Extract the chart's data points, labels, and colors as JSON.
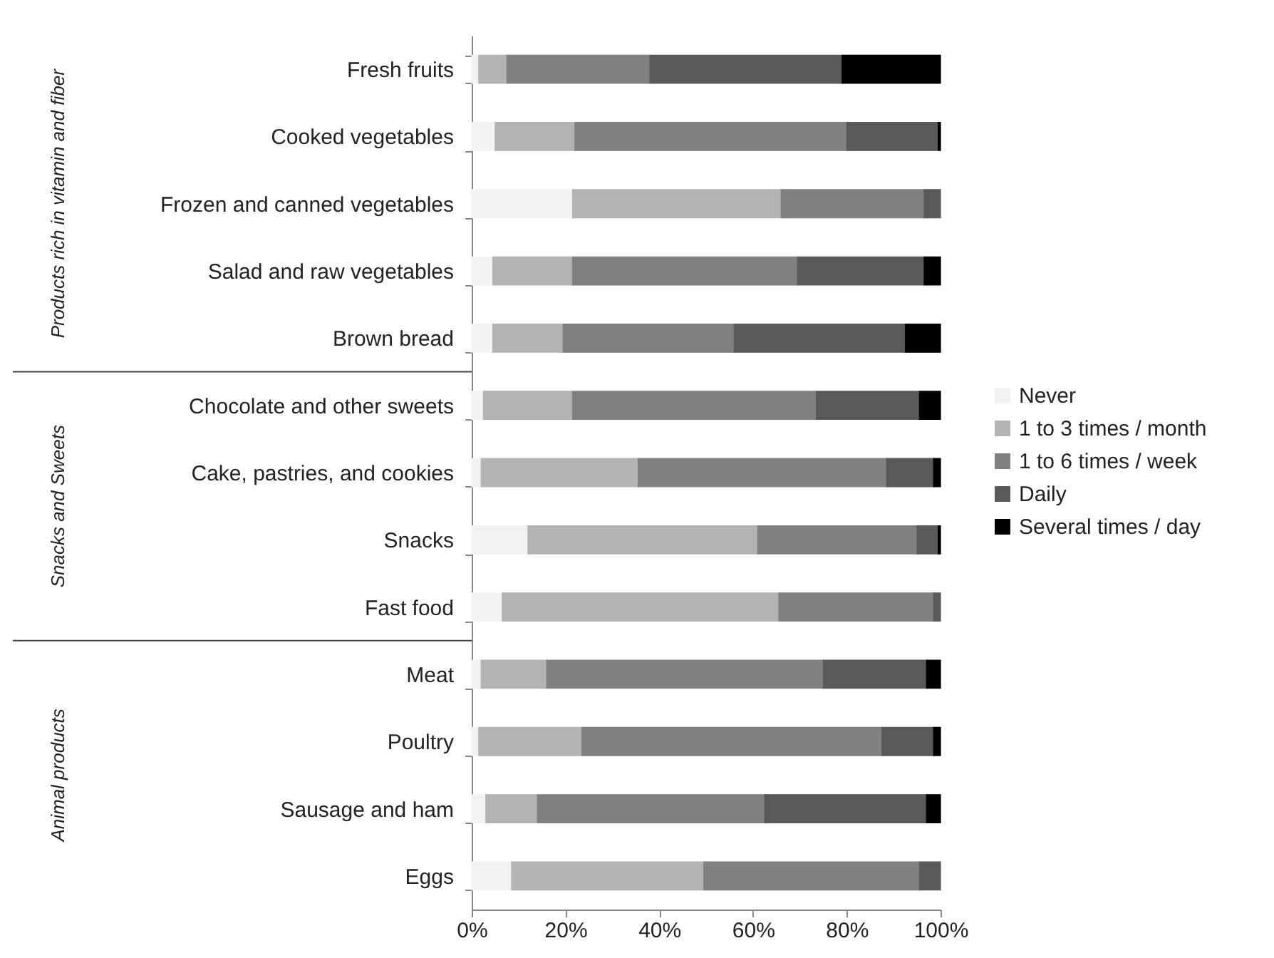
{
  "chart_data": {
    "type": "bar",
    "orientation": "horizontal",
    "stacked": true,
    "categories": [
      "Fresh fruits",
      "Cooked vegetables",
      "Frozen and canned vegetables",
      "Salad and raw vegetables",
      "Brown bread",
      "Chocolate and other sweets",
      "Cake, pastries, and cookies",
      "Snacks",
      "Fast food",
      "Meat",
      "Poultry",
      "Sausage and ham",
      "Eggs"
    ],
    "series": [
      {
        "name": "Never",
        "color": "#f2f2f2",
        "values": [
          1.5,
          5,
          21.5,
          4.5,
          4.5,
          2.5,
          2,
          12,
          6.5,
          2,
          1.5,
          3,
          8.5
        ]
      },
      {
        "name": "1 to 3 times / month",
        "color": "#b3b3b3",
        "values": [
          6,
          17,
          44.5,
          17,
          15,
          19,
          33.5,
          49,
          59,
          14,
          22,
          11,
          41
        ]
      },
      {
        "name": "1 to 6 times / week",
        "color": "#808080",
        "values": [
          30.5,
          58,
          30.5,
          48,
          36.5,
          52,
          53,
          34,
          33,
          59,
          64,
          48.5,
          46
        ]
      },
      {
        "name": "Daily",
        "color": "#595959",
        "values": [
          41,
          19.5,
          3.5,
          27,
          36.5,
          22,
          10,
          4.5,
          1.5,
          22,
          11,
          34.5,
          4.5
        ]
      },
      {
        "name": "Several times / day",
        "color": "#000000",
        "values": [
          21,
          0.5,
          0,
          3.5,
          7.5,
          4.5,
          1.5,
          0.5,
          0,
          3,
          1.5,
          3,
          0
        ]
      }
    ],
    "xlim": [
      0,
      100
    ],
    "xticks": [
      {
        "value": 0,
        "label": "0%"
      },
      {
        "value": 20,
        "label": "20%"
      },
      {
        "value": 40,
        "label": "40%"
      },
      {
        "value": 60,
        "label": "60%"
      },
      {
        "value": 80,
        "label": "80%"
      },
      {
        "value": 100,
        "label": "100%"
      }
    ],
    "annotations": [
      "Products rich in vitamin and fiber",
      "Snacks and Sweets",
      "Animal products"
    ],
    "grid": false,
    "legend": "right"
  }
}
